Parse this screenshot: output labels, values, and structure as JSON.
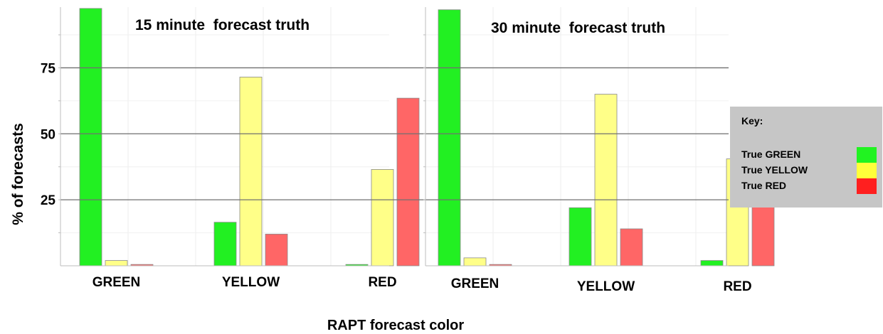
{
  "chart_data": {
    "type": "bar",
    "ylabel": "% of forecasts",
    "xlabel": "RAPT forecast color",
    "yticks": [
      25,
      50,
      75
    ],
    "ylim": [
      0,
      98
    ],
    "categories": [
      "GREEN",
      "YELLOW",
      "RED"
    ],
    "panels": [
      {
        "title": "15 minute  forecast truth",
        "series": [
          {
            "name": "True GREEN",
            "values": [
              97.5,
              16.5,
              0.5
            ]
          },
          {
            "name": "True YELLOW",
            "values": [
              2.0,
              71.5,
              36.5
            ]
          },
          {
            "name": "True RED",
            "values": [
              0.5,
              12.0,
              63.5
            ]
          }
        ]
      },
      {
        "title": "30 minute  forecast truth",
        "series": [
          {
            "name": "True GREEN",
            "values": [
              97.0,
              22.0,
              2.0
            ]
          },
          {
            "name": "True YELLOW",
            "values": [
              3.0,
              65.0,
              40.5
            ]
          },
          {
            "name": "True RED",
            "values": [
              0.5,
              14.0,
              58.5
            ]
          }
        ]
      }
    ],
    "legend": {
      "title": "Key:",
      "position": "right",
      "entries": [
        {
          "label": "True GREEN",
          "color": "#21f321"
        },
        {
          "label": "True YELLOW",
          "color": "#ffff3a"
        },
        {
          "label": "True RED",
          "color": "#ff1f1f"
        }
      ]
    },
    "bar_colors": [
      "#22f022",
      "#ffff88",
      "#ff6666"
    ],
    "grid": true
  }
}
